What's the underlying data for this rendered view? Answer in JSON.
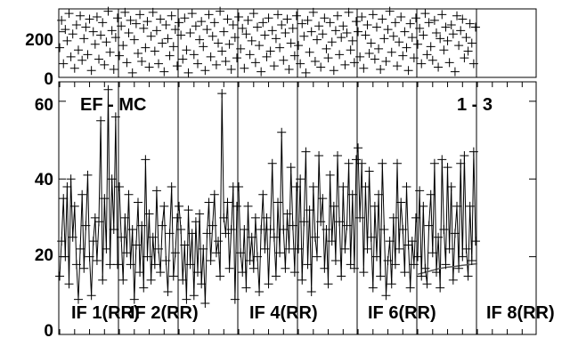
{
  "chart_data": [
    {
      "type": "scatter",
      "panel": "top",
      "ylim": [
        0,
        300
      ],
      "yticks": [
        0,
        200
      ],
      "ytick_labels": [
        "0",
        "200"
      ],
      "grid": false,
      "marker": "plus",
      "series": [
        {
          "x": [
            1,
            2,
            3,
            4,
            5,
            6,
            7,
            8,
            9,
            10,
            11,
            12,
            13,
            14,
            15,
            16,
            17,
            18,
            19,
            20,
            21,
            22,
            23,
            24,
            25,
            26,
            27,
            28,
            29,
            30,
            31,
            32,
            33,
            34,
            35,
            36,
            37,
            38,
            39,
            40,
            41,
            42,
            43,
            44,
            45,
            46,
            47,
            48,
            49,
            50,
            51,
            52,
            53,
            54,
            55,
            56,
            57,
            58,
            59,
            60,
            61,
            62,
            63,
            64,
            65,
            66,
            67,
            68,
            69,
            70,
            71,
            72,
            73,
            74,
            75,
            76,
            77,
            78,
            79,
            80,
            81,
            82,
            83,
            84,
            85,
            86,
            87,
            88,
            89,
            90,
            91,
            92,
            93,
            94,
            95,
            96,
            97,
            98,
            99,
            100,
            101,
            102,
            103,
            104,
            105,
            106,
            107,
            108,
            109,
            110,
            111,
            112,
            113,
            114,
            115,
            116,
            117,
            118,
            119,
            120,
            121,
            122,
            123,
            124,
            125,
            126,
            127,
            128,
            129,
            130,
            131,
            132,
            133,
            134,
            135,
            136,
            137,
            138,
            139,
            140,
            141,
            142,
            143,
            144,
            145,
            146,
            147,
            148,
            149,
            150,
            151,
            152,
            153,
            154,
            155,
            156,
            157,
            158,
            159,
            160,
            161,
            162,
            163,
            164,
            165,
            166,
            167,
            168,
            169,
            170,
            171,
            172,
            173,
            174,
            175,
            176,
            177,
            178,
            179,
            180,
            181,
            182,
            183,
            184,
            185,
            186,
            187,
            188,
            189,
            190,
            191,
            192,
            193,
            194,
            195,
            196,
            197,
            198,
            199,
            200,
            201,
            202,
            203,
            204,
            205,
            206,
            207,
            208,
            209,
            210,
            211,
            212,
            213,
            214,
            215,
            216,
            217,
            218,
            219,
            220,
            221,
            222,
            223,
            224,
            225,
            226,
            227,
            228,
            229,
            230,
            231,
            232,
            233,
            234,
            235,
            236,
            237,
            238,
            239,
            240,
            241,
            242,
            243,
            244,
            245,
            246,
            247,
            248,
            249,
            250,
            251,
            252,
            253,
            254,
            255,
            256
          ],
          "y": [
            130,
            250,
            60,
            210,
            160,
            280,
            90,
            190,
            40,
            230,
            120,
            270,
            75,
            170,
            220,
            100,
            255,
            30,
            200,
            145,
            265,
            80,
            185,
            240,
            55,
            155,
            290,
            110,
            205,
            35,
            175,
            260,
            95,
            225,
            140,
            285,
            65,
            195,
            250,
            20,
            165,
            235,
            105,
            275,
            70,
            215,
            130,
            245,
            45,
            180,
            285,
            115,
            205,
            60,
            255,
            150,
            25,
            230,
            170,
            95,
            270,
            135,
            210,
            50,
            240,
            185,
            80,
            260,
            120,
            20,
            195,
            280,
            100,
            225,
            60,
            165,
            245,
            135,
            30,
            210,
            275,
            90,
            180,
            240,
            55,
            150,
            290,
            115,
            200,
            70,
            255,
            145,
            35,
            230,
            175,
            85,
            265,
            125,
            215,
            40,
            190,
            250,
            100,
            160,
            280,
            65,
            220,
            140,
            25,
            240,
            185,
            90,
            260,
            115,
            205,
            50,
            170,
            275,
            130,
            230,
            75,
            195,
            255,
            35,
            150,
            215,
            95,
            270,
            140,
            60,
            235,
            180,
            20,
            250,
            110,
            200,
            285,
            70,
            165,
            225,
            45,
            190,
            260,
            125,
            85,
            240,
            155,
            30,
            205,
            270,
            100,
            175,
            225,
            55,
            195,
            285,
            120,
            160,
            65,
            245,
            200,
            90,
            265,
            40,
            185,
            230,
            105,
            150,
            275,
            80,
            220,
            125,
            35,
            255,
            170,
            70,
            210,
            290,
            110,
            180,
            240,
            50,
            155,
            265,
            95,
            200,
            130,
            30,
            235,
            175,
            85,
            260,
            145,
            215,
            60,
            185,
            280,
            100,
            240,
            135,
            75,
            250,
            195,
            45,
            170,
            275,
            120,
            220,
            160,
            65,
            230,
            190,
            25,
            270,
            140,
            205,
            255,
            85,
            175,
            115,
            235,
            150,
            60,
            220,
            185,
            100,
            265,
            130,
            35,
            210,
            245,
            160,
            75,
            195,
            280,
            110,
            180,
            230,
            50,
            150,
            255,
            90,
            200,
            215,
            130,
            170,
            240,
            70,
            185,
            220,
            100,
            160,
            250,
            125,
            60,
            200
          ]
        }
      ]
    },
    {
      "type": "line",
      "panel": "bottom",
      "ylim": [
        0,
        65
      ],
      "yticks": [
        0,
        20,
        40,
        60
      ],
      "ytick_labels": [
        "0",
        "20",
        "40",
        "60"
      ],
      "grid": false,
      "marker": "plus",
      "title": "EF - MC",
      "label_right": "1 - 3",
      "segments": [
        {
          "name": "IF 1(RR)",
          "x_start": 1,
          "values": [
            15,
            24,
            35,
            20,
            38,
            13,
            40,
            25,
            33,
            18,
            9,
            22,
            36,
            17,
            28,
            41,
            20,
            10,
            24,
            30,
            19,
            29,
            55,
            14,
            35,
            22,
            63,
            18,
            40,
            27,
            56,
            18
          ]
        },
        {
          "name": "IF 2(RR)",
          "x_start": 33,
          "values": [
            38,
            25,
            14,
            30,
            21,
            36,
            18,
            27,
            9,
            23,
            34,
            16,
            28,
            12,
            45,
            20,
            31,
            14,
            25,
            18,
            37,
            22,
            16,
            28,
            33,
            19,
            11,
            26,
            38,
            15,
            21,
            30
          ]
        },
        {
          "name": "",
          "x_start": 65,
          "values": [
            33,
            27,
            14,
            23,
            9,
            32,
            18,
            26,
            10,
            29,
            16,
            31,
            13,
            22,
            8,
            26,
            34,
            19,
            28,
            36,
            21,
            24,
            15,
            62,
            30,
            26,
            34,
            17,
            27,
            38,
            9,
            33
          ]
        },
        {
          "name": "IF 4(RR)",
          "x_start": 97,
          "values": [
            38,
            21,
            16,
            27,
            12,
            33,
            19,
            25,
            17,
            30,
            20,
            11,
            27,
            36,
            22,
            30,
            13,
            27,
            44,
            25,
            15,
            34,
            21,
            52,
            27,
            17,
            31,
            22,
            43,
            28,
            16,
            38
          ]
        },
        {
          "name": "",
          "x_start": 129,
          "values": [
            22,
            40,
            14,
            29,
            47,
            18,
            32,
            11,
            38,
            25,
            20,
            46,
            29,
            35,
            17,
            27,
            13,
            41,
            24,
            33,
            19,
            46,
            29,
            15,
            38,
            22,
            28,
            44,
            18,
            36,
            17,
            45
          ]
        },
        {
          "name": "IF 6(RR)",
          "x_start": 161,
          "values": [
            48,
            30,
            44,
            16,
            38,
            22,
            42,
            25,
            12,
            33,
            20,
            36,
            15,
            44,
            27,
            10,
            19,
            24,
            13,
            30,
            18,
            44,
            22,
            34,
            27,
            16,
            38,
            23,
            12,
            24,
            18,
            30
          ]
        },
        {
          "name": "",
          "x_start": 193,
          "values": [
            20,
            37,
            15,
            33,
            17,
            13,
            28,
            36,
            21,
            44,
            16,
            25,
            12,
            45,
            27,
            18,
            43,
            22,
            38,
            14,
            26,
            33,
            17,
            44,
            20,
            46,
            22,
            15,
            33,
            19,
            47,
            24
          ]
        },
        {
          "name": "IF 8(RR)",
          "x_start": 225,
          "values": []
        }
      ],
      "secondary_line": {
        "x": [
          193,
          197,
          201,
          205,
          209,
          213,
          217,
          221,
          225
        ],
        "y": [
          15.5,
          16,
          16.5,
          17,
          17.3,
          17.5,
          17.8,
          18,
          18.2
        ]
      }
    }
  ]
}
